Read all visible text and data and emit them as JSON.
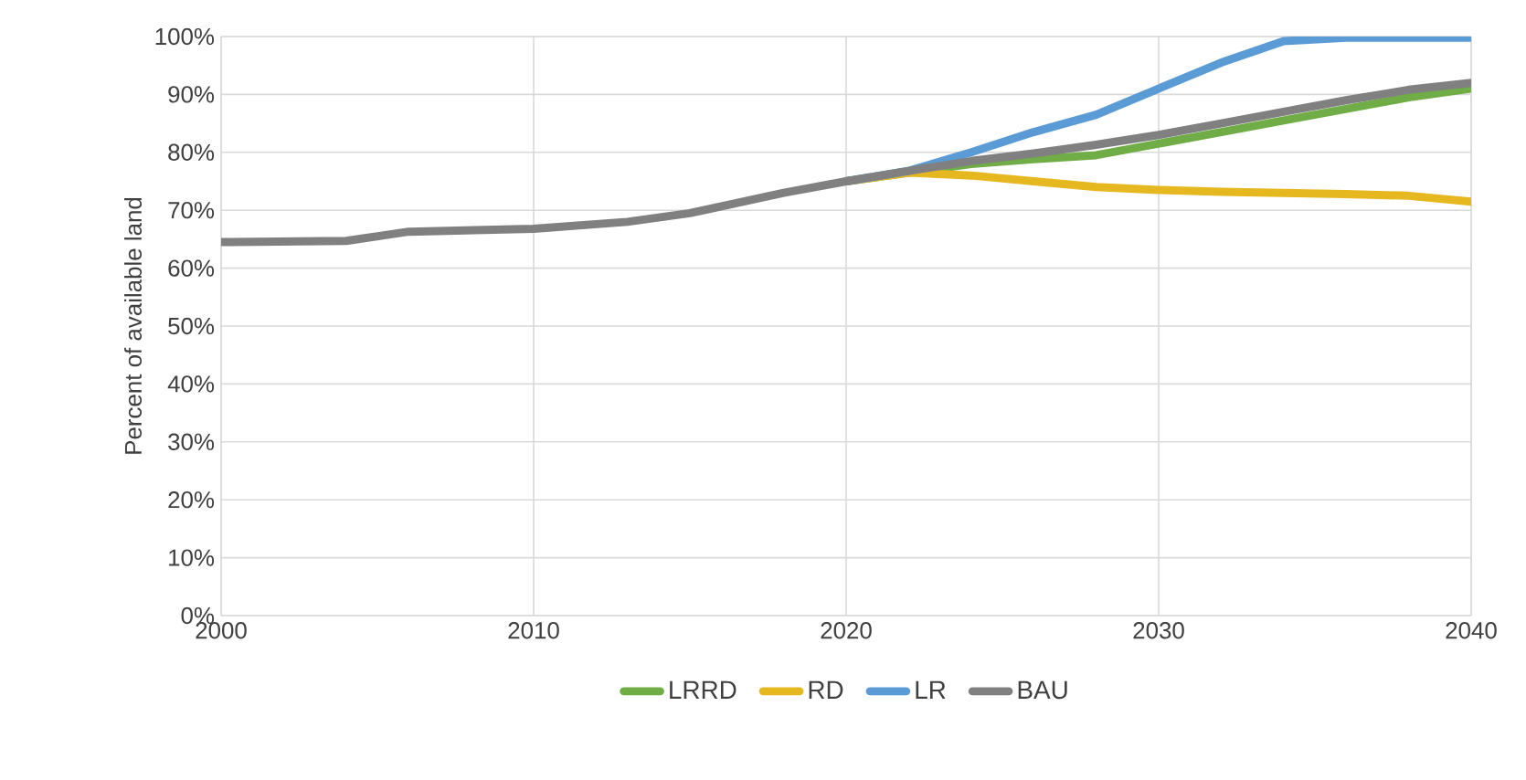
{
  "chart_data": {
    "type": "line",
    "ylabel": "Percent of available land",
    "x": [
      2000,
      2004,
      2006,
      2010,
      2013,
      2015,
      2018,
      2020,
      2022,
      2024,
      2026,
      2028,
      2030,
      2032,
      2034,
      2036,
      2038,
      2040
    ],
    "series": [
      {
        "name": "LRRD",
        "color": "#70ad47",
        "values": [
          null,
          null,
          null,
          null,
          null,
          null,
          null,
          75,
          76.5,
          78,
          78.8,
          79.5,
          81.5,
          83.5,
          85.5,
          87.5,
          89.5,
          91
        ]
      },
      {
        "name": "RD",
        "color": "#e6b820",
        "values": [
          null,
          null,
          null,
          null,
          null,
          null,
          null,
          75,
          76.5,
          76,
          75,
          74,
          73.5,
          73.2,
          73,
          72.8,
          72.5,
          71.5
        ]
      },
      {
        "name": "LR",
        "color": "#5b9bd5",
        "values": [
          null,
          null,
          null,
          null,
          null,
          null,
          null,
          75,
          76.8,
          80,
          83.5,
          86.5,
          91,
          95.5,
          99.2,
          99.8,
          99.8,
          99.8
        ]
      },
      {
        "name": "BAU",
        "color": "#808080",
        "values": [
          64.5,
          64.7,
          66.3,
          66.8,
          68,
          69.5,
          73,
          75,
          76.8,
          78.5,
          79.8,
          81.3,
          83,
          85,
          87,
          89,
          90.8,
          92
        ]
      }
    ],
    "xlim": [
      2000,
      2040
    ],
    "xticks": [
      2000,
      2010,
      2020,
      2030,
      2040
    ],
    "ylim": [
      0,
      100
    ],
    "yticks": [
      {
        "value": 0,
        "label": "0%"
      },
      {
        "value": 10,
        "label": "10%"
      },
      {
        "value": 20,
        "label": "20%"
      },
      {
        "value": 30,
        "label": "30%"
      },
      {
        "value": 40,
        "label": "40%"
      },
      {
        "value": 50,
        "label": "50%"
      },
      {
        "value": 60,
        "label": "60%"
      },
      {
        "value": 70,
        "label": "70%"
      },
      {
        "value": 80,
        "label": "80%"
      },
      {
        "value": 90,
        "label": "90%"
      },
      {
        "value": 100,
        "label": "100%"
      }
    ],
    "grid": true,
    "legend": "bottom"
  }
}
